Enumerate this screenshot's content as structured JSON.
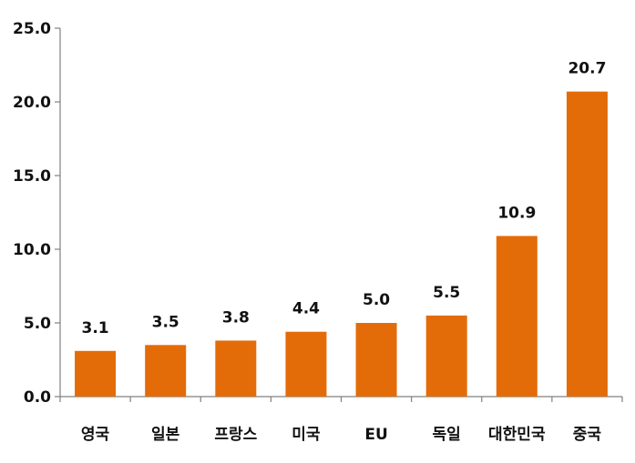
{
  "chart_data": {
    "type": "bar",
    "title": "",
    "xlabel": "",
    "ylabel": "",
    "categories": [
      "영국",
      "일본",
      "프랑스",
      "미국",
      "EU",
      "독일",
      "대한민국",
      "중국"
    ],
    "values": [
      3.1,
      3.5,
      3.8,
      4.4,
      5.0,
      5.5,
      10.9,
      20.7
    ],
    "value_labels": [
      "3.1",
      "3.5",
      "3.8",
      "4.4",
      "5.0",
      "5.5",
      "10.9",
      "20.7"
    ],
    "ylim": [
      0,
      25
    ],
    "y_ticks": [
      0,
      5,
      10,
      15,
      20,
      25
    ],
    "y_tick_labels": [
      "0.0",
      "5.0",
      "10.0",
      "15.0",
      "20.0",
      "25.0"
    ],
    "grid": false,
    "legend": "none",
    "bar_color": "#E36C09",
    "axis_color": "#808080"
  }
}
